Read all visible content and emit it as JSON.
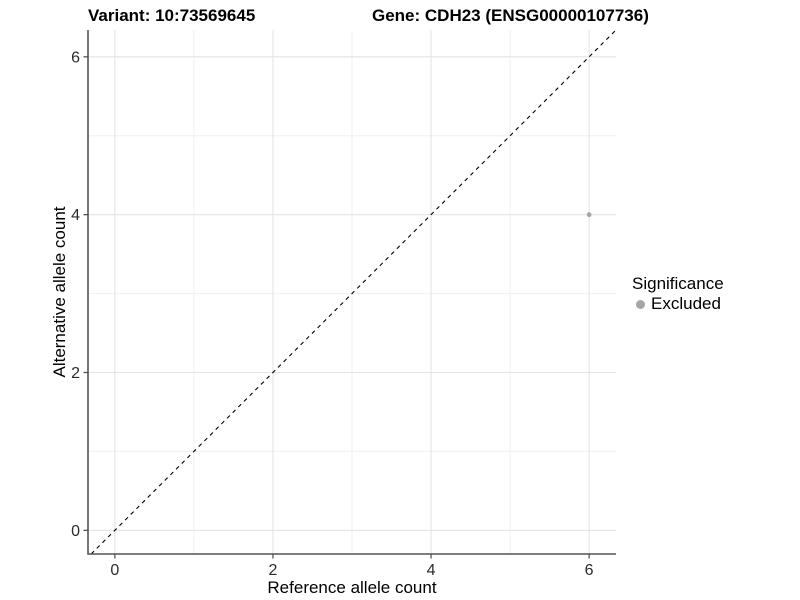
{
  "titles": {
    "left": "Variant: 10:73569645",
    "right": "Gene: CDH23 (ENSG00000107736)"
  },
  "chart_data": {
    "type": "scatter",
    "xlabel": "Reference allele count",
    "ylabel": "Alternative allele count",
    "xlim": [
      -0.34,
      6.34
    ],
    "ylim": [
      -0.3,
      6.34
    ],
    "x_ticks": [
      0,
      2,
      4,
      6
    ],
    "y_ticks": [
      0,
      2,
      4,
      6
    ],
    "x_minor_ticks": [
      1,
      3,
      5
    ],
    "y_minor_ticks": [
      1,
      3,
      5
    ],
    "grid": "on",
    "reference_line": {
      "type": "identity",
      "slope": 1,
      "intercept": 0,
      "style": "dashed",
      "color": "#000000"
    },
    "series": [
      {
        "name": "Excluded",
        "color": "#a5a5a5",
        "points": [
          [
            6,
            4
          ]
        ]
      }
    ],
    "legend": {
      "title": "Significance",
      "position": "right",
      "entries": [
        {
          "label": "Excluded",
          "color": "#a5a5a5"
        }
      ]
    }
  },
  "colors": {
    "background": "#ffffff",
    "axis_line": "#545454",
    "tick_mark": "#545454",
    "tick_label": "#2b2b2b",
    "grid_major": "#e4e4e4",
    "grid_minor": "#f0f0f0",
    "point": "#a5a5a5"
  }
}
